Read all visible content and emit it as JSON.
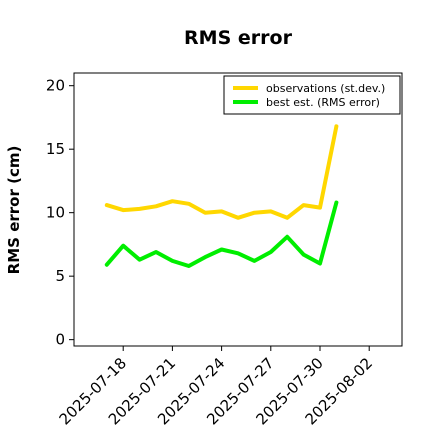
{
  "chart_data": {
    "type": "line",
    "title": "RMS error",
    "xlabel": "",
    "ylabel": "RMS error (cm)",
    "ylim": [
      -0.5,
      21
    ],
    "yticks": [
      0,
      5,
      10,
      15,
      20
    ],
    "xlim": [
      "2025-07-15",
      "2025-08-04"
    ],
    "xticks": [
      "2025-07-18",
      "2025-07-21",
      "2025-07-24",
      "2025-07-27",
      "2025-07-30",
      "2025-08-02"
    ],
    "highlight_tick": "2025-07-24",
    "highlight_color": "#228b22",
    "legend_position": "top-right",
    "grid": false,
    "x": [
      "2025-07-17",
      "2025-07-18",
      "2025-07-19",
      "2025-07-20",
      "2025-07-21",
      "2025-07-22",
      "2025-07-23",
      "2025-07-24",
      "2025-07-25",
      "2025-07-26",
      "2025-07-27",
      "2025-07-28",
      "2025-07-29",
      "2025-07-30",
      "2025-07-31"
    ],
    "series": [
      {
        "name": "observations (st.dev.)",
        "color": "#ffd700",
        "values": [
          10.6,
          10.2,
          10.3,
          10.5,
          10.9,
          10.7,
          10.0,
          10.1,
          9.6,
          10.0,
          10.1,
          9.6,
          10.6,
          10.4,
          16.8
        ]
      },
      {
        "name": "best est. (RMS error)",
        "color": "#00ee00",
        "values": [
          5.9,
          7.4,
          6.3,
          6.9,
          6.2,
          5.8,
          6.5,
          7.1,
          6.8,
          6.2,
          6.9,
          8.1,
          6.7,
          6.0,
          10.8
        ]
      }
    ]
  }
}
